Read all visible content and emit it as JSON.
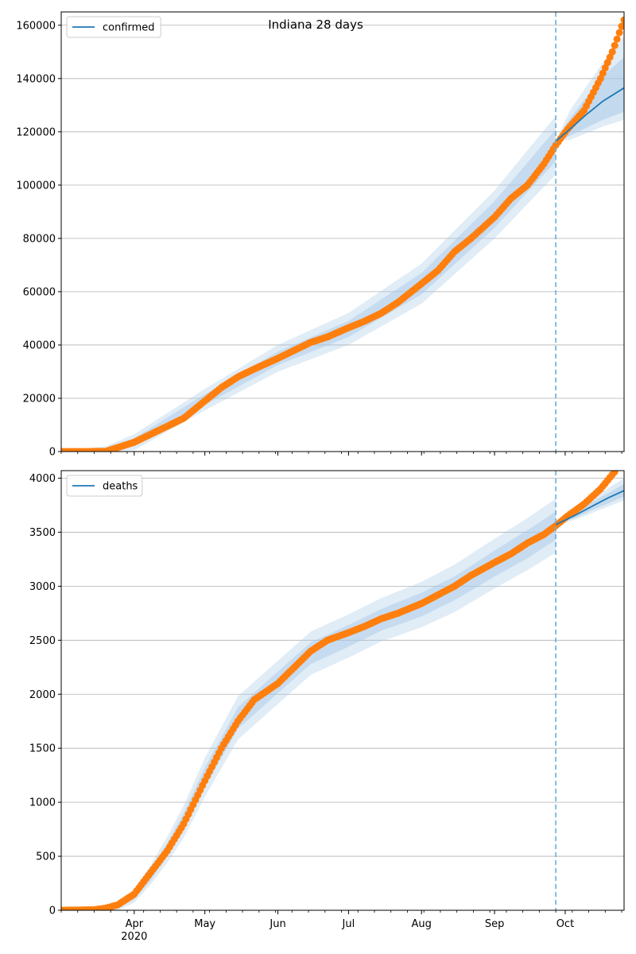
{
  "figure": {
    "title": "Indiana 28 days"
  },
  "chart_data": [
    {
      "type": "line",
      "panel": "top",
      "xlabel": "",
      "ylabel": "",
      "x_range": [
        "2020-03-01",
        "2020-10-26"
      ],
      "ylim": [
        0,
        165000
      ],
      "yticks": [
        0,
        20000,
        40000,
        60000,
        80000,
        100000,
        120000,
        140000,
        160000
      ],
      "grid": "horizontal",
      "legend_position": "top-left",
      "forecast_start": "2020-09-27",
      "colors": {
        "model": "#1f77b4",
        "observed": "#ff7f0e",
        "band": "#a6c8e6",
        "vline": "#6baed6"
      },
      "series": [
        {
          "name": "confirmed",
          "role": "model",
          "x": [
            "2020-09-27",
            "2020-10-03",
            "2020-10-10",
            "2020-10-17",
            "2020-10-26"
          ],
          "y": [
            116500,
            121000,
            126500,
            131500,
            136500
          ],
          "band_inner_lo": [
            116500,
            118500,
            121500,
            124500,
            127500
          ],
          "band_inner_hi": [
            116500,
            125000,
            133000,
            141000,
            148000
          ],
          "band_outer_lo": [
            116500,
            117000,
            119500,
            122000,
            124500
          ],
          "band_outer_hi": [
            116500,
            128000,
            137000,
            146000,
            156000
          ]
        },
        {
          "role": "observed",
          "x": [
            "2020-03-01",
            "2020-03-10",
            "2020-03-20",
            "2020-03-25",
            "2020-04-01",
            "2020-04-08",
            "2020-04-15",
            "2020-04-22",
            "2020-05-01",
            "2020-05-08",
            "2020-05-15",
            "2020-05-22",
            "2020-06-01",
            "2020-06-08",
            "2020-06-15",
            "2020-06-22",
            "2020-07-01",
            "2020-07-08",
            "2020-07-15",
            "2020-07-22",
            "2020-08-01",
            "2020-08-08",
            "2020-08-15",
            "2020-08-22",
            "2020-09-01",
            "2020-09-08",
            "2020-09-15",
            "2020-09-22",
            "2020-09-27",
            "2020-10-02",
            "2020-10-09",
            "2020-10-16",
            "2020-10-21",
            "2020-10-26"
          ],
          "y": [
            0,
            0,
            100,
            1500,
            3500,
            6500,
            9500,
            12500,
            19000,
            24000,
            28000,
            31000,
            35000,
            38000,
            41000,
            43000,
            46500,
            49000,
            52000,
            56000,
            63000,
            68000,
            75000,
            80000,
            88000,
            95000,
            100000,
            108000,
            115000,
            121000,
            128000,
            140000,
            150000,
            162000
          ]
        },
        {
          "role": "fit_band",
          "x": [
            "2020-03-01",
            "2020-03-20",
            "2020-04-01",
            "2020-05-01",
            "2020-06-01",
            "2020-07-01",
            "2020-08-01",
            "2020-09-01",
            "2020-09-27"
          ],
          "y": [
            0,
            1000,
            3500,
            19500,
            35000,
            46000,
            63000,
            89000,
            115000
          ],
          "band_inner": [
            0,
            500,
            1500,
            2000,
            2500,
            3000,
            4000,
            5000,
            6000
          ],
          "band_outer": [
            0,
            1000,
            3000,
            4000,
            5000,
            6000,
            7500,
            9000,
            11000
          ]
        }
      ]
    },
    {
      "type": "line",
      "panel": "bottom",
      "xlabel": "",
      "ylabel": "",
      "x_range": [
        "2020-03-01",
        "2020-10-26"
      ],
      "ylim": [
        0,
        4070
      ],
      "yticks": [
        0,
        500,
        1000,
        1500,
        2000,
        2500,
        3000,
        3500,
        4000
      ],
      "xticks": [
        {
          "date": "2020-04-01",
          "label": "Apr"
        },
        {
          "date": "2020-05-01",
          "label": "May"
        },
        {
          "date": "2020-06-01",
          "label": "Jun"
        },
        {
          "date": "2020-07-01",
          "label": "Jul"
        },
        {
          "date": "2020-08-01",
          "label": "Aug"
        },
        {
          "date": "2020-09-01",
          "label": "Sep"
        },
        {
          "date": "2020-10-01",
          "label": "Oct"
        }
      ],
      "xtick_sublabel": "2020",
      "grid": "horizontal",
      "legend_position": "top-left",
      "forecast_start": "2020-09-27",
      "series": [
        {
          "name": "deaths",
          "role": "model",
          "x": [
            "2020-09-27",
            "2020-10-05",
            "2020-10-12",
            "2020-10-19",
            "2020-10-26"
          ],
          "y": [
            3570,
            3655,
            3735,
            3815,
            3885
          ],
          "band_inner_lo": [
            3570,
            3630,
            3700,
            3765,
            3830
          ],
          "band_inner_hi": [
            3570,
            3680,
            3775,
            3860,
            3945
          ],
          "band_outer_lo": [
            3570,
            3615,
            3675,
            3735,
            3795
          ],
          "band_outer_hi": [
            3570,
            3700,
            3810,
            3905,
            4000
          ]
        },
        {
          "role": "observed",
          "x": [
            "2020-03-01",
            "2020-03-15",
            "2020-03-20",
            "2020-03-25",
            "2020-04-01",
            "2020-04-08",
            "2020-04-15",
            "2020-04-22",
            "2020-05-01",
            "2020-05-08",
            "2020-05-15",
            "2020-05-22",
            "2020-06-01",
            "2020-06-08",
            "2020-06-15",
            "2020-06-22",
            "2020-07-01",
            "2020-07-08",
            "2020-07-15",
            "2020-07-22",
            "2020-08-01",
            "2020-08-08",
            "2020-08-15",
            "2020-08-22",
            "2020-09-01",
            "2020-09-08",
            "2020-09-15",
            "2020-09-22",
            "2020-09-27",
            "2020-10-02",
            "2020-10-09",
            "2020-10-16",
            "2020-10-22"
          ],
          "y": [
            0,
            5,
            20,
            50,
            150,
            350,
            550,
            800,
            1200,
            1500,
            1750,
            1950,
            2100,
            2250,
            2400,
            2500,
            2570,
            2630,
            2700,
            2750,
            2840,
            2920,
            3000,
            3100,
            3220,
            3300,
            3400,
            3480,
            3560,
            3650,
            3760,
            3900,
            4060
          ]
        },
        {
          "role": "fit_band",
          "x": [
            "2020-03-01",
            "2020-03-15",
            "2020-03-25",
            "2020-04-01",
            "2020-04-08",
            "2020-04-15",
            "2020-04-22",
            "2020-05-01",
            "2020-05-15",
            "2020-06-01",
            "2020-06-15",
            "2020-07-01",
            "2020-07-15",
            "2020-08-01",
            "2020-08-15",
            "2020-09-01",
            "2020-09-15",
            "2020-09-27"
          ],
          "y": [
            0,
            5,
            40,
            130,
            330,
            560,
            820,
            1230,
            1780,
            2110,
            2380,
            2540,
            2690,
            2830,
            2980,
            3210,
            3390,
            3560
          ],
          "band_inner": [
            0,
            5,
            20,
            30,
            50,
            60,
            80,
            90,
            100,
            100,
            100,
            100,
            100,
            110,
            110,
            120,
            130,
            130
          ],
          "band_outer": [
            0,
            10,
            40,
            60,
            90,
            120,
            150,
            180,
            200,
            200,
            200,
            200,
            200,
            210,
            220,
            230,
            240,
            250
          ]
        }
      ]
    }
  ]
}
